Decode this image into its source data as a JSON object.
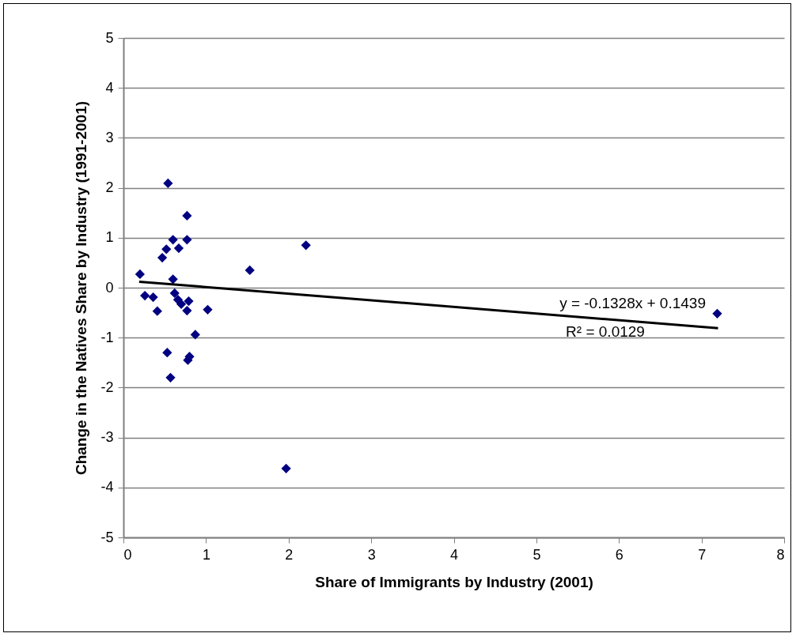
{
  "chart_data": {
    "type": "scatter",
    "xlabel": "Share of Immigrants by Industry (2001)",
    "ylabel": "Change in the Natives Share by Industry (1991-2001)",
    "xlim": [
      0,
      8
    ],
    "xticks": [
      0,
      1,
      2,
      3,
      4,
      5,
      6,
      7,
      8
    ],
    "ylim": [
      -5,
      5
    ],
    "yticks": [
      -5,
      -4,
      -3,
      -2,
      -1,
      0,
      1,
      2,
      3,
      4,
      5
    ],
    "grid": "y",
    "series": [
      {
        "marker": "diamond",
        "color": "#000080",
        "x": [
          0.2,
          0.54,
          0.77,
          0.6,
          0.77,
          0.67,
          0.52,
          0.47,
          0.6,
          0.26,
          0.36,
          0.41,
          0.62,
          0.66,
          0.7,
          0.79,
          0.77,
          1.02,
          0.87,
          0.53,
          0.8,
          0.78,
          0.57,
          1.53,
          2.21,
          1.97,
          7.19
        ],
        "values": [
          0.27,
          2.09,
          1.44,
          0.96,
          0.96,
          0.79,
          0.77,
          0.6,
          0.17,
          -0.16,
          -0.19,
          -0.47,
          -0.11,
          -0.24,
          -0.33,
          -0.27,
          -0.46,
          -0.44,
          -0.94,
          -1.3,
          -1.38,
          -1.45,
          -1.8,
          0.35,
          0.85,
          -3.62,
          -0.52
        ]
      },
      {
        "type": "line",
        "color": "#000000",
        "x": [
          0.19,
          7.2
        ],
        "values": [
          0.12,
          -0.81
        ]
      }
    ],
    "annotations": [
      "y = -0.1328x + 0.1439",
      "R² = 0.0129"
    ]
  }
}
